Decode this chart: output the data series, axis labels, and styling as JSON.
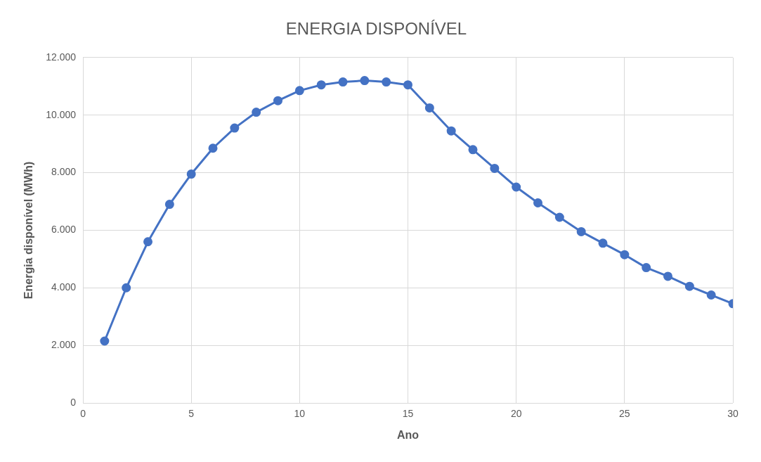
{
  "chart_data": {
    "type": "line",
    "title": "ENERGIA DISPONÍVEL",
    "xlabel": "Ano",
    "ylabel": "Energia disponível (MWh)",
    "x": [
      1,
      2,
      3,
      4,
      5,
      6,
      7,
      8,
      9,
      10,
      11,
      12,
      13,
      14,
      15,
      16,
      17,
      18,
      19,
      20,
      21,
      22,
      23,
      24,
      25,
      26,
      27,
      28,
      29,
      30
    ],
    "series": [
      {
        "color": "#4472c4",
        "values": [
          2150,
          4000,
          5600,
          6900,
          7950,
          8850,
          9550,
          10100,
          10500,
          10850,
          11050,
          11150,
          11200,
          11150,
          11050,
          10250,
          9450,
          8800,
          8150,
          7500,
          6950,
          6450,
          5950,
          5550,
          5150,
          4700,
          4400,
          4050,
          3750,
          3450
        ]
      }
    ],
    "xlim": [
      0,
      30
    ],
    "xticks": [
      0,
      5,
      10,
      15,
      20,
      25,
      30
    ],
    "ylim": [
      0,
      12000
    ],
    "yticks": [
      0,
      {
        "value": 2000,
        "label": "2.000"
      },
      {
        "value": 4000,
        "label": "4.000"
      },
      {
        "value": 6000,
        "label": "6.000"
      },
      {
        "value": 8000,
        "label": "8.000"
      },
      {
        "value": 10000,
        "label": "10.000"
      },
      {
        "value": 12000,
        "label": "12.000"
      }
    ],
    "grid": true,
    "marker": "circle",
    "line_style": "solid",
    "legend": false
  }
}
